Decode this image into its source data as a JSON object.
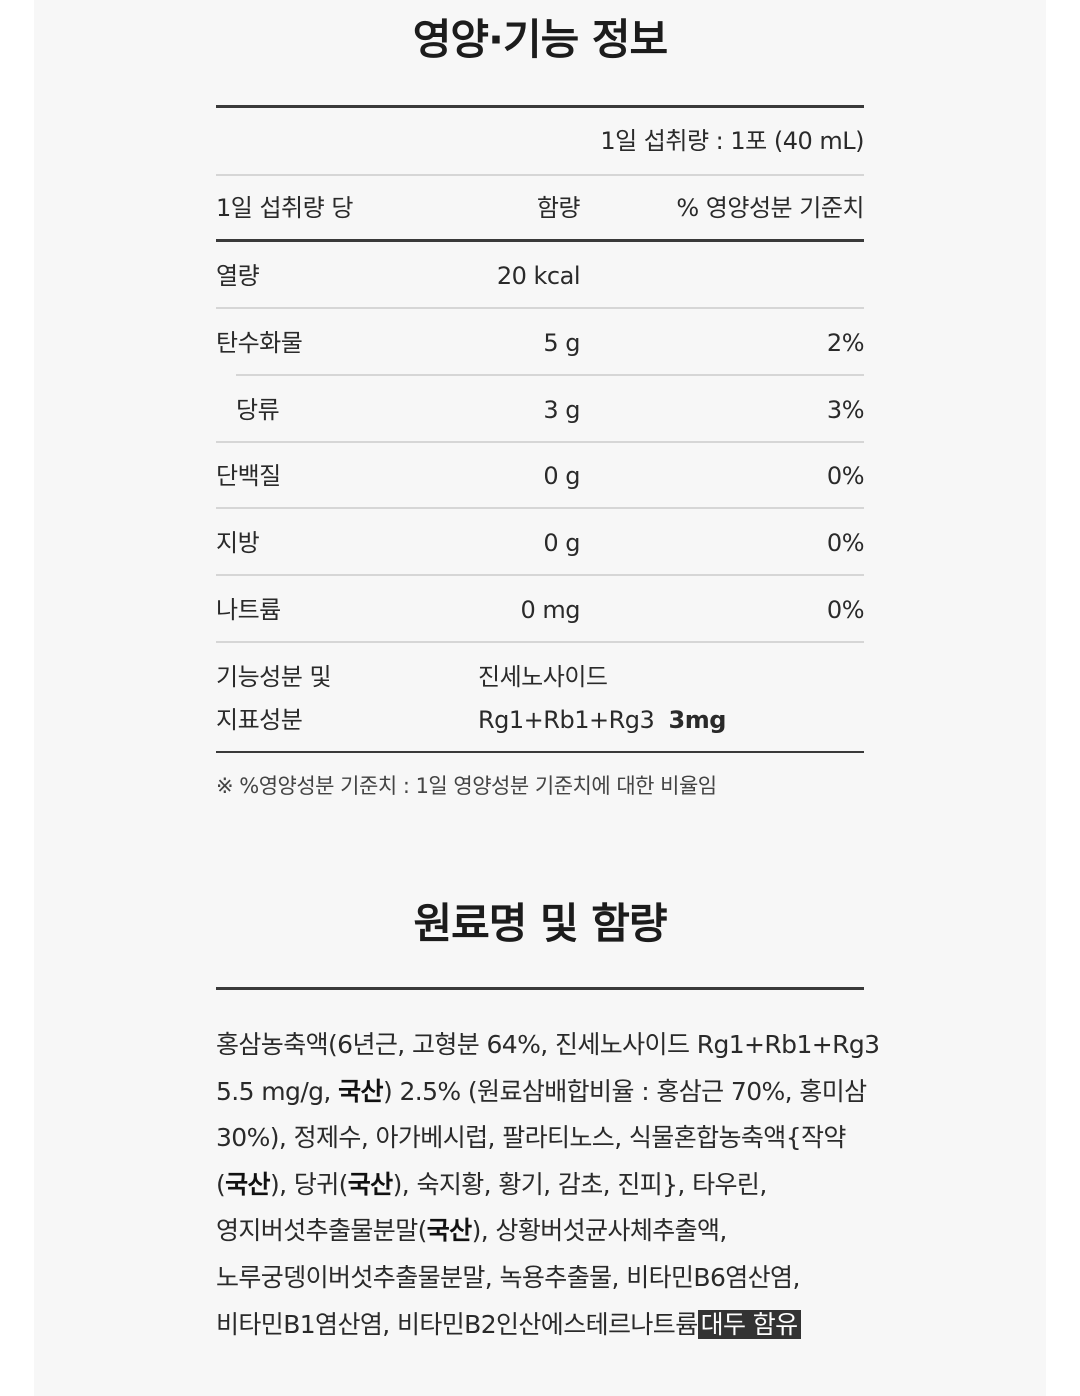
{
  "nutrition": {
    "title": "영양·기능 정보",
    "serving": "1일 섭취량 : 1포 (40 mL)",
    "headers": {
      "label": "1일 섭취량 당",
      "amount": "함량",
      "percent": "% 영양성분 기준치"
    },
    "rows": [
      {
        "label": "열량",
        "amount": "20 kcal",
        "percent": ""
      },
      {
        "label": "탄수화물",
        "amount": "5 g",
        "percent": "2%"
      },
      {
        "label": "당류",
        "amount": "3 g",
        "percent": "3%"
      },
      {
        "label": "단백질",
        "amount": "0 g",
        "percent": "0%"
      },
      {
        "label": "지방",
        "amount": "0 g",
        "percent": "0%"
      },
      {
        "label": "나트륨",
        "amount": "0 mg",
        "percent": "0%"
      }
    ],
    "functional": {
      "label_line1": "기능성분 및",
      "label_line2": "지표성분",
      "value_line1": "진세노사이드",
      "value_line2": "Rg1+Rb1+Rg3",
      "value_amount": "3mg"
    },
    "note": "※ %영양성분 기준치 : 1일 영양성분 기준치에 대한 비율임"
  },
  "ingredients": {
    "title": "원료명 및 함량",
    "lines": [
      [
        {
          "t": "홍삼농축액(6년근, 고형분 64%, 진세노사이드 Rg1+Rb1+Rg3"
        }
      ],
      [
        {
          "t": "5.5 mg/g, "
        },
        {
          "t": "국산",
          "b": true
        },
        {
          "t": ") 2.5% (원료삼배합비율 : 홍삼근 70%, 홍미삼"
        }
      ],
      [
        {
          "t": "30%), 정제수, 아가베시럽, 팔라티노스, 식물혼합농축액{작약"
        }
      ],
      [
        {
          "t": "("
        },
        {
          "t": "국산",
          "b": true
        },
        {
          "t": "), 당귀("
        },
        {
          "t": "국산",
          "b": true
        },
        {
          "t": "), 숙지황, 황기, 감초, 진피}, 타우린,"
        }
      ],
      [
        {
          "t": "영지버섯추출물분말("
        },
        {
          "t": "국산",
          "b": true
        },
        {
          "t": "), 상황버섯균사체추출액,"
        }
      ],
      [
        {
          "t": "노루궁뎅이버섯추출물분말, 녹용추출물, 비타민B6염산염,"
        }
      ],
      [
        {
          "t": "비타민B1염산염, 비타민B2인산에스테르나트륨"
        },
        {
          "t": "대두 함유",
          "hl": true
        }
      ]
    ]
  }
}
